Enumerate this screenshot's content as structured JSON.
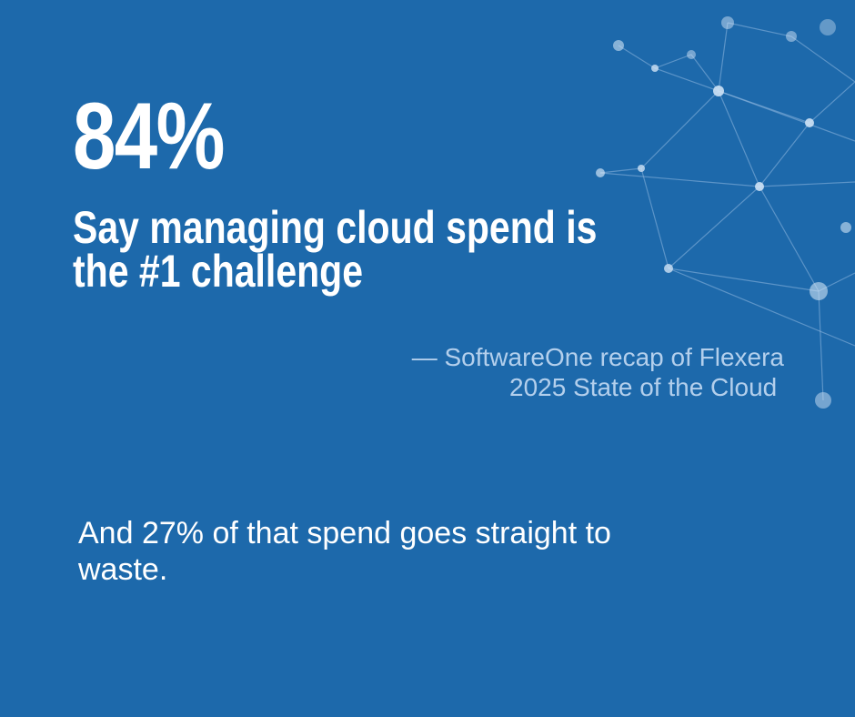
{
  "stat": "84%",
  "headline": [
    "Say managing cloud spend is",
    "the #1 challenge"
  ],
  "source": [
    "— SoftwareOne recap of Flexera",
    "2025 State of the Cloud "
  ],
  "body": [
    "And 27% of that spend goes straight to",
    "waste."
  ]
}
